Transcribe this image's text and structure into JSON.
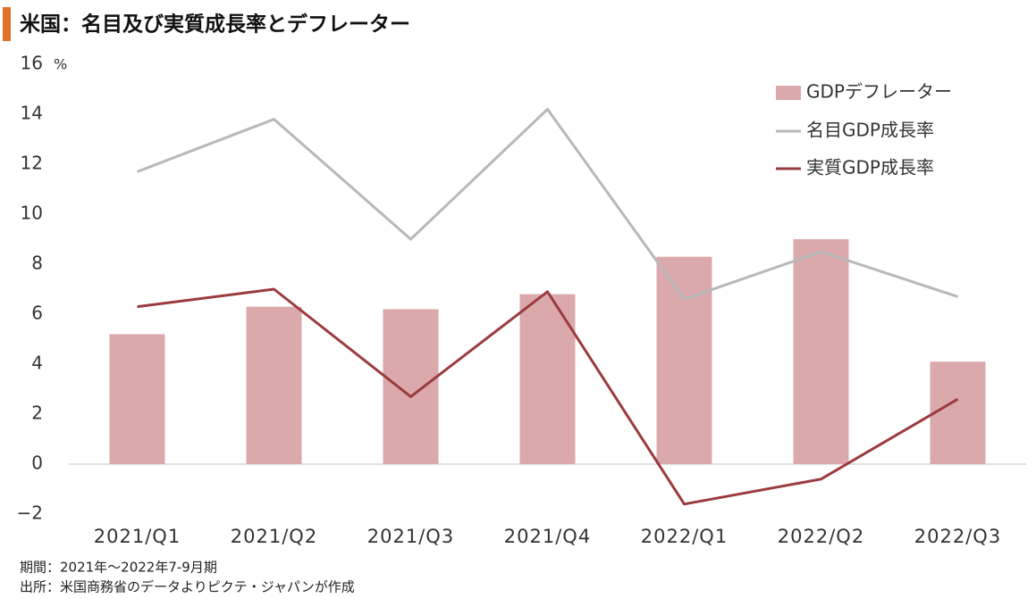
{
  "chart_data": {
    "type": "combo",
    "title": "米国：名目及び実質成長率とデフレーター",
    "y_unit": "%",
    "categories": [
      "2021/Q1",
      "2021/Q2",
      "2021/Q3",
      "2021/Q4",
      "2022/Q1",
      "2022/Q2",
      "2022/Q3"
    ],
    "series": [
      {
        "name": "GDPデフレーター",
        "type": "bar",
        "color": "#dba9ab",
        "values": [
          5.2,
          6.3,
          6.2,
          6.8,
          8.3,
          9.0,
          4.1
        ]
      },
      {
        "name": "名目GDP成長率",
        "type": "line",
        "color": "#b8b8b8",
        "values": [
          11.7,
          13.8,
          9.0,
          14.2,
          6.6,
          8.5,
          6.7
        ]
      },
      {
        "name": "実質GDP成長率",
        "type": "line",
        "color": "#9b3b3f",
        "values": [
          6.3,
          7.0,
          2.7,
          6.9,
          -1.6,
          -0.6,
          2.6
        ]
      }
    ],
    "ylim": [
      -2,
      16
    ],
    "yticks": [
      {
        "value": -2,
        "label": "−2"
      },
      0,
      2,
      4,
      6,
      8,
      10,
      12,
      14,
      16
    ],
    "grid": false,
    "legend": "top-right",
    "notes": [
      "期間：2021年～2022年7-9月期",
      "出所：米国商務省のデータよりピクテ・ジャパンが作成"
    ]
  }
}
